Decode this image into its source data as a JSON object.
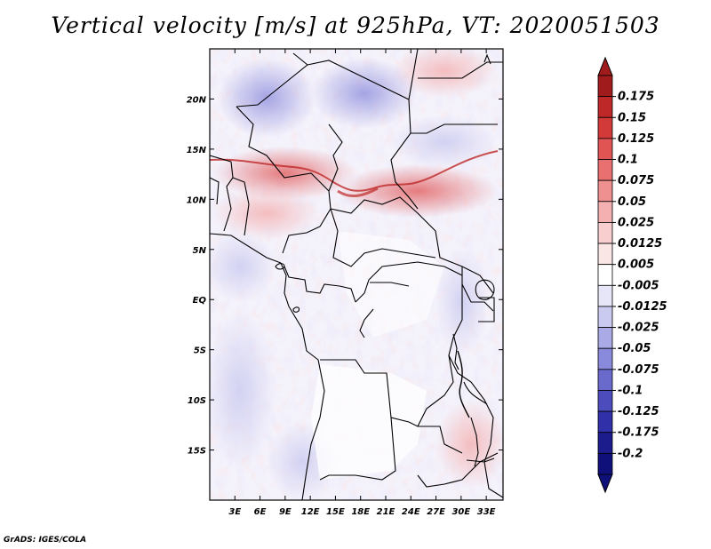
{
  "title": "Vertical velocity [m/s] at 925hPa, VT: 2020051503",
  "credit": "GrADS: IGES/COLA",
  "map": {
    "lon_range": [
      0,
      35
    ],
    "lat_range": [
      -20,
      25
    ],
    "lon_ticks": [
      "3E",
      "6E",
      "9E",
      "12E",
      "15E",
      "18E",
      "21E",
      "24E",
      "27E",
      "30E",
      "33E"
    ],
    "lat_ticks": [
      "20N",
      "15N",
      "10N",
      "5N",
      "EQ",
      "5S",
      "10S",
      "15S"
    ],
    "lon_tick_values": [
      3,
      6,
      9,
      12,
      15,
      18,
      21,
      24,
      27,
      30,
      33
    ],
    "lat_tick_values": [
      20,
      15,
      10,
      5,
      0,
      -5,
      -10,
      -15
    ]
  },
  "colorbar": {
    "labels": [
      "0.175",
      "0.15",
      "0.125",
      "0.1",
      "0.075",
      "0.05",
      "0.025",
      "0.0125",
      "0.005",
      "-0.005",
      "-0.0125",
      "-0.025",
      "-0.05",
      "-0.075",
      "-0.1",
      "-0.125",
      "-0.175",
      "-0.2"
    ],
    "colors": [
      "#a01c1c",
      "#be2828",
      "#d23a3a",
      "#e05454",
      "#e87070",
      "#ef9090",
      "#f4b0b0",
      "#f8cece",
      "#fbe6e6",
      "#ffffff",
      "#e6e6f8",
      "#cacaf0",
      "#aaaae6",
      "#8a8adc",
      "#6a6acc",
      "#4c4cbc",
      "#3030a8",
      "#1c1c8c",
      "#10107a"
    ],
    "top_arrow_color": "#a01c1c",
    "bottom_arrow_color": "#10107a"
  }
}
